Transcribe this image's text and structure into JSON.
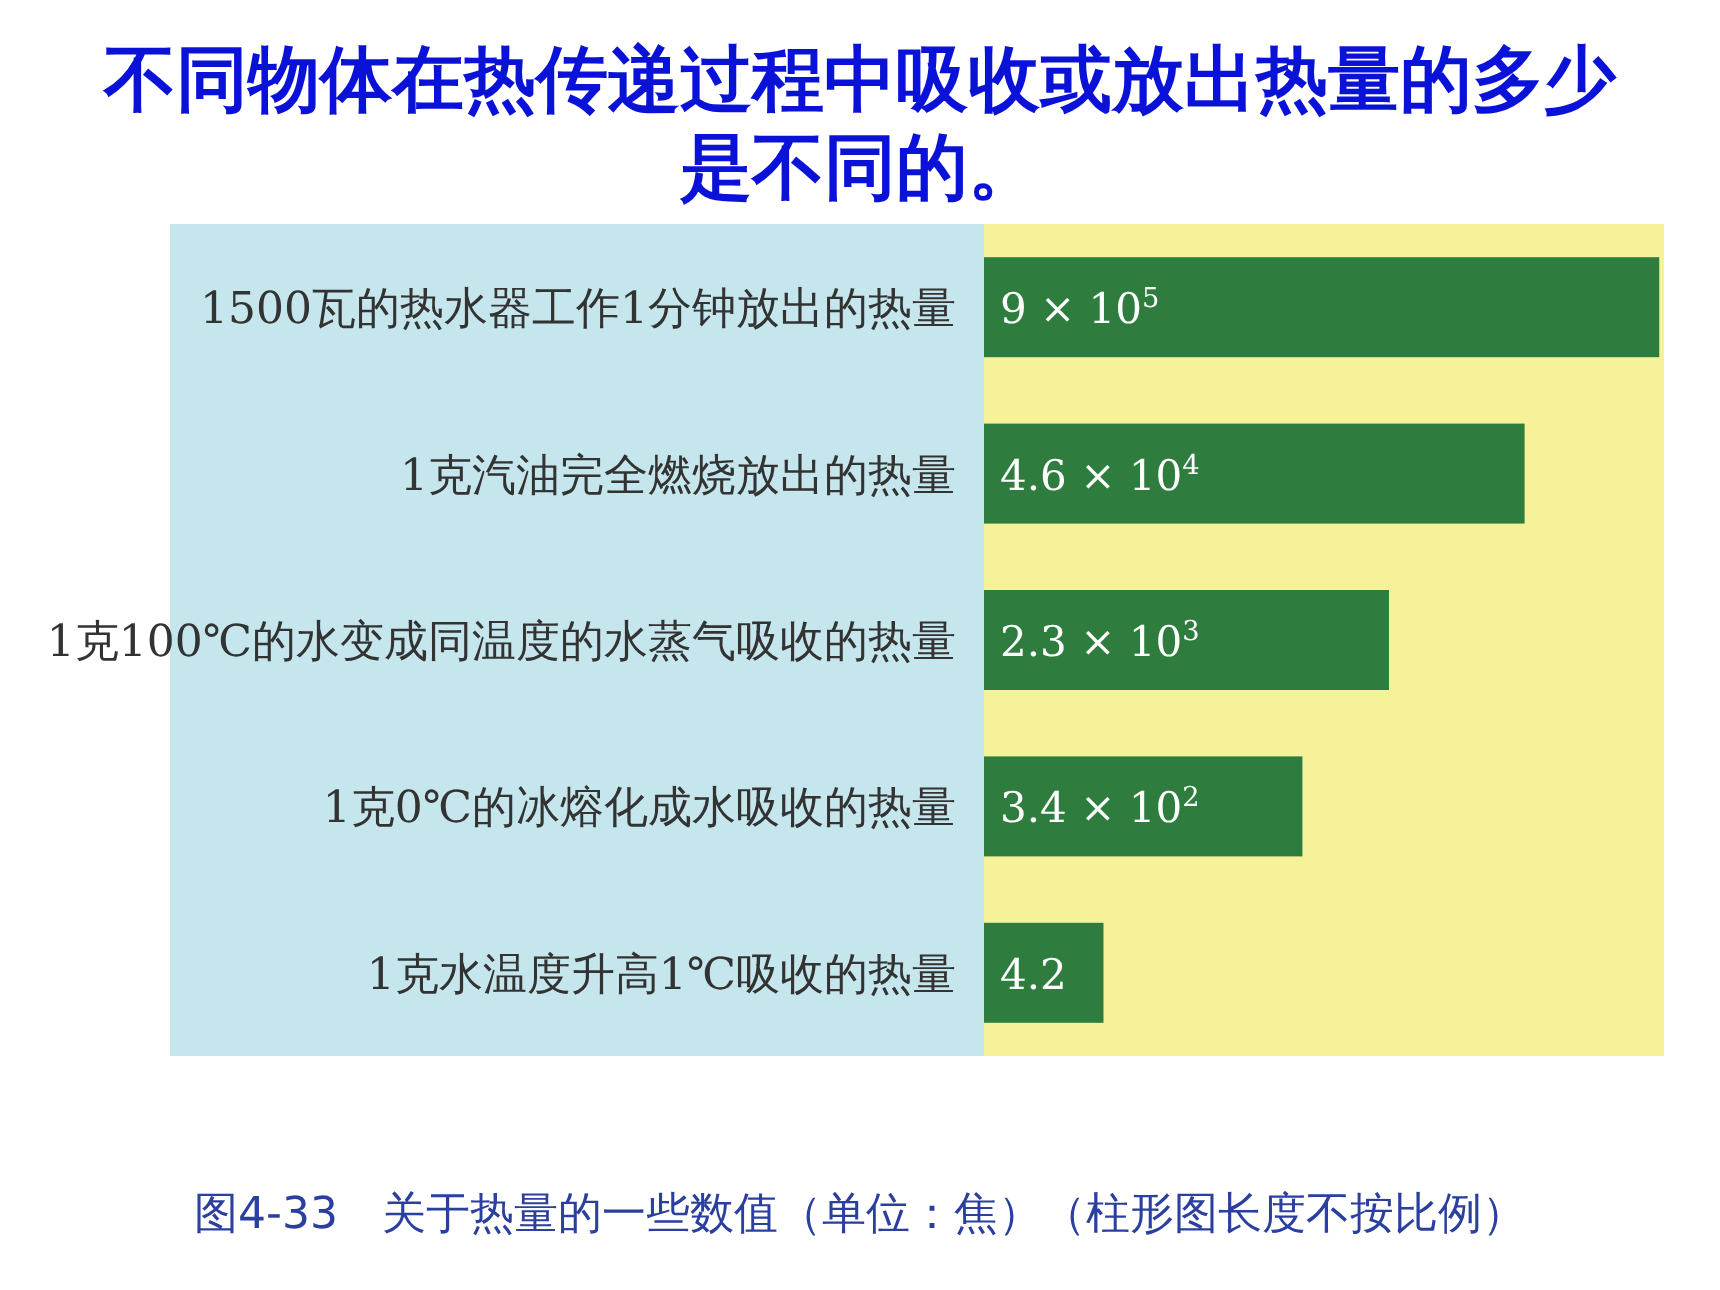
{
  "chart_data": {
    "type": "bar",
    "orientation": "horizontal",
    "log": "x",
    "xlim": [
      0.3,
      1000000
    ],
    "tick_labels": "y",
    "title": "不同物体在热传递过程中吸收或放出热量的多少是不同的。",
    "categories": [
      "1500瓦的热水器工作1分钟放出的热量",
      "1克汽油完全燃烧放出的热量",
      "1克100℃的水变成同温度的水蒸气吸收的热量",
      "1克0℃的冰熔化成水吸收的热量",
      "1克水温度升高1℃吸收的热量"
    ],
    "values": [
      900000,
      46000,
      2300,
      340,
      4.2
    ],
    "value_labels": [
      "9 × 10$^{5}$",
      "4.6 × 10$^{4}$",
      "2.3 × 10$^{3}$",
      "3.4 × 10$^{2}$",
      "4.2"
    ],
    "color": "#2e7d3e",
    "annotations": [
      "图4-33　关于热量的一些数值（单位：焦）（柱形图长度不按比例）"
    ]
  }
}
